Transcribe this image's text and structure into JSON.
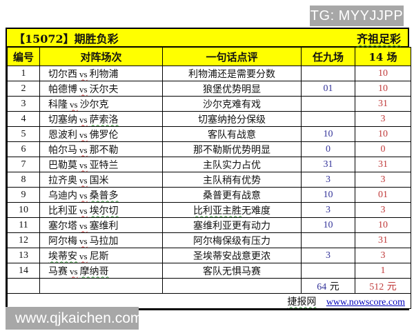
{
  "watermarks": {
    "telegram": "TG: MYYJJPP",
    "site": "www.qjkaichen.com"
  },
  "title_bar": {
    "left": "【15072】期胜负彩",
    "right": "齐祖足彩"
  },
  "table": {
    "headers": [
      "编号",
      "对阵场次",
      "一句话点评",
      "任九场",
      "14 场"
    ],
    "vs_label": "vs",
    "rows": [
      {
        "num": "1",
        "team1": "切尔西",
        "team2": "利物浦",
        "comment": "利物浦还是需要分数",
        "ren9": "",
        "c14": "10"
      },
      {
        "num": "2",
        "team1": "帕德博",
        "team2": "沃尔夫",
        "comment": "狼堡优势明显",
        "ren9": "01",
        "c14": "10"
      },
      {
        "num": "3",
        "team1": "科隆",
        "team2": "沙尔克",
        "comment": "沙尔克难有戏",
        "ren9": "",
        "c14": "31"
      },
      {
        "num": "4",
        "team1": "切塞纳",
        "team2": "萨索洛",
        "team2_wavy": true,
        "comment": "切塞纳抢分保级",
        "ren9": "",
        "c14": "3"
      },
      {
        "num": "5",
        "team1": "恩波利",
        "team2": "佛罗伦",
        "comment": "客队有战意",
        "ren9": "10",
        "c14": "10"
      },
      {
        "num": "6",
        "team1": "帕尔马",
        "team2": "那不勒",
        "comment": "那不勒斯优势明显",
        "ren9": "0",
        "c14": "0"
      },
      {
        "num": "7",
        "team1": "巴勒莫",
        "team2": "亚特兰",
        "comment": "主队实力占优",
        "ren9": "31",
        "c14": "31"
      },
      {
        "num": "8",
        "team1": "拉齐奥",
        "team2": "国米",
        "comment": "主队稍有优势",
        "ren9": "3",
        "c14": "3"
      },
      {
        "num": "9",
        "team1": "乌迪内",
        "team2": "桑普多",
        "team2_wavy": true,
        "comment": "桑普更有战意",
        "ren9": "10",
        "c14": "01"
      },
      {
        "num": "10",
        "team1": "比利亚",
        "team2": "埃尔切",
        "team2_wavy": true,
        "comment": "比利亚主胜无难度",
        "comment_wavy": "比利亚主胜",
        "ren9": "3",
        "c14": "3"
      },
      {
        "num": "11",
        "team1": "塞尔塔",
        "team2": "塞维利",
        "comment": "塞维利亚更有动力",
        "ren9": "10",
        "c14": "10"
      },
      {
        "num": "12",
        "team1": "阿尔梅",
        "team2": "马拉加",
        "comment": "阿尔梅保级有压力",
        "ren9": "",
        "c14": "31"
      },
      {
        "num": "13",
        "team1": "埃蒂安",
        "team1_wavy": true,
        "team2": "尼斯",
        "comment": "圣埃蒂安战意更浓",
        "ren9": "3",
        "c14": "3"
      },
      {
        "num": "14",
        "team1": "马赛",
        "team2": "摩纳哥",
        "team2_wavy": true,
        "comment": "客队无惧马赛",
        "ren9": "",
        "c14": "1"
      }
    ],
    "totals": {
      "ren9_value": "64",
      "c14_value": "512",
      "unit": "元"
    },
    "footer": {
      "site_name": "捷报网",
      "site_url": "www.nowscore.com"
    }
  },
  "colors": {
    "highlight_yellow": "#ffff00",
    "ren9_blue": "#333399",
    "c14_red": "#c03a3a",
    "watermark_gray": "#a7a7a7",
    "link_blue": "#0000bb"
  }
}
